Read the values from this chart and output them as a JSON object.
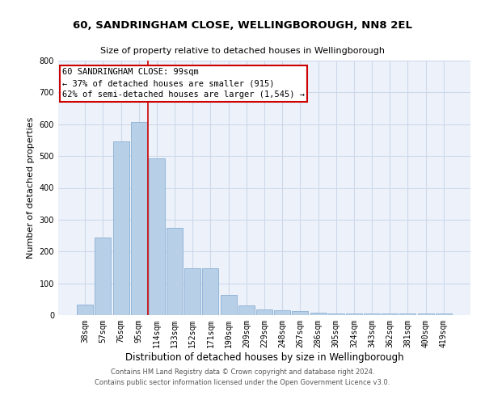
{
  "title1": "60, SANDRINGHAM CLOSE, WELLINGBOROUGH, NN8 2EL",
  "title2": "Size of property relative to detached houses in Wellingborough",
  "xlabel": "Distribution of detached houses by size in Wellingborough",
  "ylabel": "Number of detached properties",
  "categories": [
    "38sqm",
    "57sqm",
    "76sqm",
    "95sqm",
    "114sqm",
    "133sqm",
    "152sqm",
    "171sqm",
    "190sqm",
    "209sqm",
    "229sqm",
    "248sqm",
    "267sqm",
    "286sqm",
    "305sqm",
    "324sqm",
    "343sqm",
    "362sqm",
    "381sqm",
    "400sqm",
    "419sqm"
  ],
  "values": [
    33,
    245,
    545,
    607,
    493,
    275,
    148,
    148,
    63,
    30,
    18,
    15,
    13,
    8,
    5,
    5,
    5,
    5,
    5,
    5,
    5
  ],
  "bar_color": "#b8cfe8",
  "bar_edge_color": "#8ab0d4",
  "vline_x": 3.5,
  "annotation_line1": "60 SANDRINGHAM CLOSE: 99sqm",
  "annotation_line2": "← 37% of detached houses are smaller (915)",
  "annotation_line3": "62% of semi-detached houses are larger (1,545) →",
  "annotation_box_facecolor": "#ffffff",
  "annotation_box_edgecolor": "#cc0000",
  "vline_color": "#cc0000",
  "grid_color": "#ccd8ea",
  "background_color": "#edf2fa",
  "footnote1": "Contains HM Land Registry data © Crown copyright and database right 2024.",
  "footnote2": "Contains public sector information licensed under the Open Government Licence v3.0.",
  "ylim": [
    0,
    800
  ],
  "yticks": [
    0,
    100,
    200,
    300,
    400,
    500,
    600,
    700,
    800
  ],
  "title1_fontsize": 9.5,
  "title2_fontsize": 8,
  "ylabel_fontsize": 8,
  "xlabel_fontsize": 8.5,
  "tick_fontsize": 7,
  "annot_fontsize": 7.5,
  "footnote_fontsize": 6
}
